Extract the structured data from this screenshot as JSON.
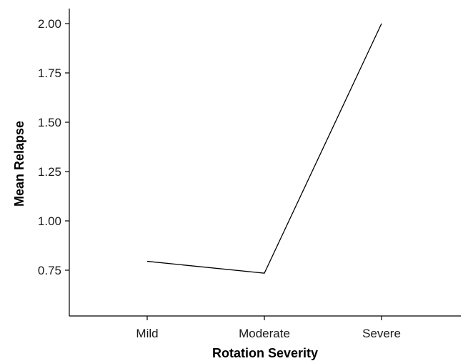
{
  "chart_data": {
    "type": "line",
    "title": "",
    "xlabel": "Rotation Severity",
    "ylabel": "Mean Relapse",
    "categories": [
      "Mild",
      "Moderate",
      "Severe"
    ],
    "series": [
      {
        "values": [
          0.795,
          0.735,
          2.0
        ]
      }
    ],
    "ylim": [
      0.52,
      2.08
    ],
    "yticks": [
      0.75,
      1.0,
      1.25,
      1.5,
      1.75,
      2.0
    ],
    "ytick_labels": [
      "0.75",
      "1.00",
      "1.25",
      "1.50",
      "1.75",
      "2.00"
    ],
    "grid": false,
    "legend": "none",
    "colors": {
      "line": "#000000",
      "axis": "#000000"
    }
  }
}
